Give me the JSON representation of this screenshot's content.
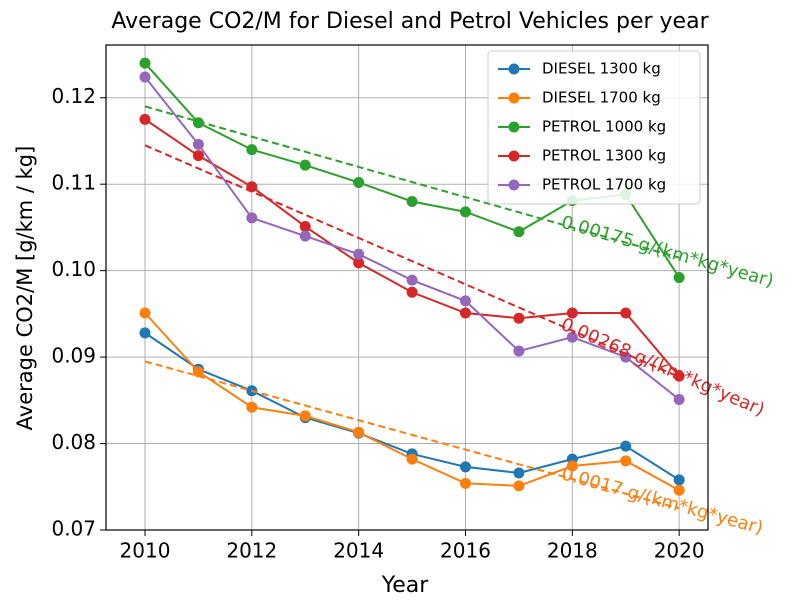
{
  "chart_data": {
    "type": "line",
    "title": "Average CO2/M for Diesel and Petrol Vehicles per year",
    "xlabel": "Year",
    "ylabel": "Average CO2/M [g/km / kg]",
    "x": [
      2010,
      2011,
      2012,
      2013,
      2014,
      2015,
      2016,
      2017,
      2018,
      2019,
      2020
    ],
    "xlim": [
      2009.27,
      2020.54
    ],
    "xticks": [
      2010,
      2012,
      2014,
      2016,
      2018,
      2020
    ],
    "ylim": [
      0.07,
      0.1261
    ],
    "yticks": [
      {
        "value": 0.07,
        "label": "0.07"
      },
      {
        "value": 0.08,
        "label": "0.08"
      },
      {
        "value": 0.09,
        "label": "0.09"
      },
      {
        "value": 0.1,
        "label": "0.10"
      },
      {
        "value": 0.11,
        "label": "0.11"
      },
      {
        "value": 0.12,
        "label": "0.12"
      }
    ],
    "grid": true,
    "legend": "upper right",
    "series": [
      {
        "name": "DIESEL 1300 kg",
        "color": "#1f77b4",
        "values": [
          0.0928,
          0.0886,
          0.0861,
          0.083,
          0.0812,
          0.0788,
          0.0773,
          0.0766,
          0.0782,
          0.0797,
          0.0758
        ]
      },
      {
        "name": "DIESEL 1700 kg",
        "color": "#ff7f0e",
        "values": [
          0.0951,
          0.0883,
          0.0842,
          0.0832,
          0.0813,
          0.0782,
          0.0754,
          0.0751,
          0.0774,
          0.078,
          0.0746
        ]
      },
      {
        "name": "PETROL 1000 kg",
        "color": "#2ca02c",
        "values": [
          0.124,
          0.1171,
          0.114,
          0.1122,
          0.1102,
          0.108,
          0.1068,
          0.1045,
          0.1081,
          0.1088,
          0.0992
        ]
      },
      {
        "name": "PETROL 1300 kg",
        "color": "#d62728",
        "values": [
          0.1175,
          0.1133,
          0.1097,
          0.1051,
          0.1009,
          0.0975,
          0.0951,
          0.0945,
          0.0951,
          0.0951,
          0.0878
        ]
      },
      {
        "name": "PETROL 1700 kg",
        "color": "#9467bd",
        "values": [
          0.1224,
          0.1146,
          0.1061,
          0.104,
          0.1019,
          0.0989,
          0.0965,
          0.0907,
          0.0923,
          0.09,
          0.0851
        ]
      }
    ],
    "fits": [
      {
        "label": "0.00175 g/(km*kg*year)",
        "color": "#2ca02c",
        "x": [
          2010,
          2020
        ],
        "values": [
          0.119,
          0.1015
        ]
      },
      {
        "label": "0.00268 g/(km*kg*year)",
        "color": "#d62728",
        "x": [
          2010,
          2020
        ],
        "values": [
          0.1145,
          0.0877
        ]
      },
      {
        "label": "0.0017 g/(km*kg*year)",
        "color": "#ff7f0e",
        "x": [
          2010,
          2020
        ],
        "values": [
          0.0895,
          0.0725
        ]
      }
    ]
  }
}
